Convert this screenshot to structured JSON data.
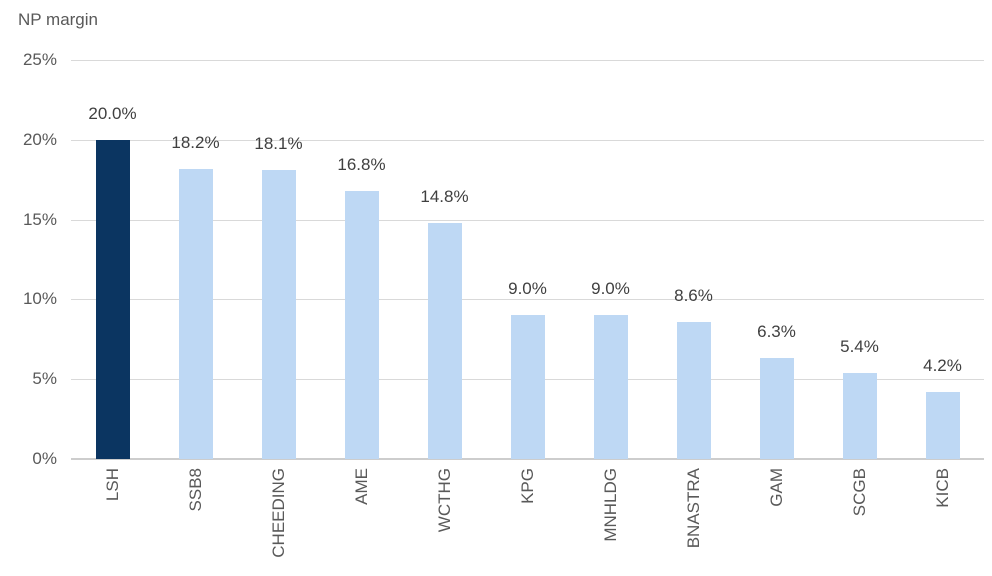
{
  "chart_data": {
    "type": "bar",
    "title": "NP margin",
    "title_position": "top-left",
    "categories": [
      "LSH",
      "SSB8",
      "CHEEDING",
      "AME",
      "WCTHG",
      "KPG",
      "MNHLDG",
      "BNASTRA",
      "GAM",
      "SCGB",
      "KICB"
    ],
    "values": [
      20.0,
      18.2,
      18.1,
      16.8,
      14.8,
      9.0,
      9.0,
      8.6,
      6.3,
      5.4,
      4.2
    ],
    "value_labels": [
      "20.0%",
      "18.2%",
      "18.1%",
      "16.8%",
      "14.8%",
      "9.0%",
      "9.0%",
      "8.6%",
      "6.3%",
      "5.4%",
      "4.2%"
    ],
    "xlabel": "",
    "ylabel": "NP margin",
    "ylim": [
      0,
      25
    ],
    "ytick_values": [
      25,
      20,
      15,
      10,
      5,
      0
    ],
    "ytick_labels": [
      "25%",
      "20%",
      "15%",
      "10%",
      "5%",
      "0%"
    ],
    "grid": true,
    "legend": "none",
    "xtick_rotation_degrees": 90,
    "highlight_index": 0,
    "colors": {
      "highlight_bar": "#0b3561",
      "default_bar": "#bed8f4",
      "gridline": "#d9d9d9",
      "axis_line": "#cdcdcd",
      "axis_text": "#595959",
      "value_label_text": "#404040",
      "title_text": "#595959",
      "background": "#ffffff"
    }
  }
}
